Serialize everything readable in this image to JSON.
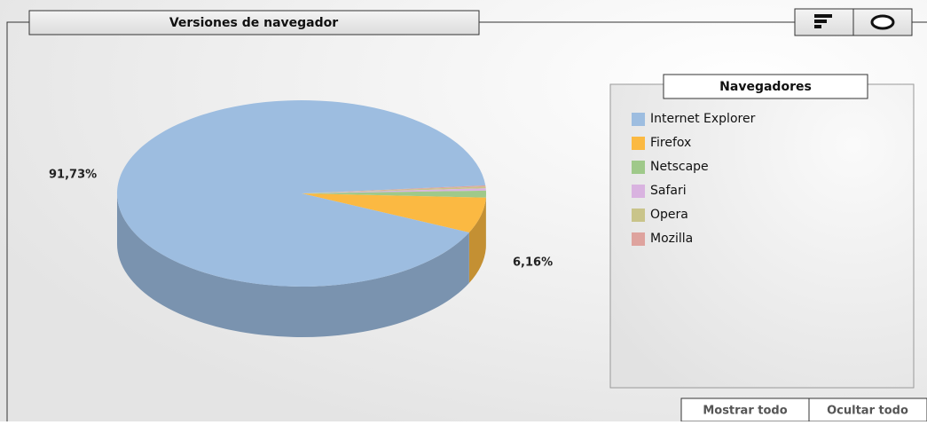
{
  "chart_data": {
    "type": "pie",
    "title": "Versiones de navegador",
    "legend_title": "Navegadores",
    "categories": [
      "Internet Explorer",
      "Firefox",
      "Netscape",
      "Safari",
      "Opera",
      "Mozilla"
    ],
    "values": [
      91.73,
      6.16,
      1.2,
      0.4,
      0.3,
      0.21
    ],
    "value_labels": [
      "91,73%",
      "6,16%",
      null,
      null,
      null,
      null
    ],
    "colors": [
      "#9dbde0",
      "#fbb942",
      "#9fc98a",
      "#d9b3e0",
      "#c9c48a",
      "#dea39e"
    ],
    "legend": "right"
  },
  "buttons": [
    "Mostrar todo",
    "Ocultar todo"
  ]
}
